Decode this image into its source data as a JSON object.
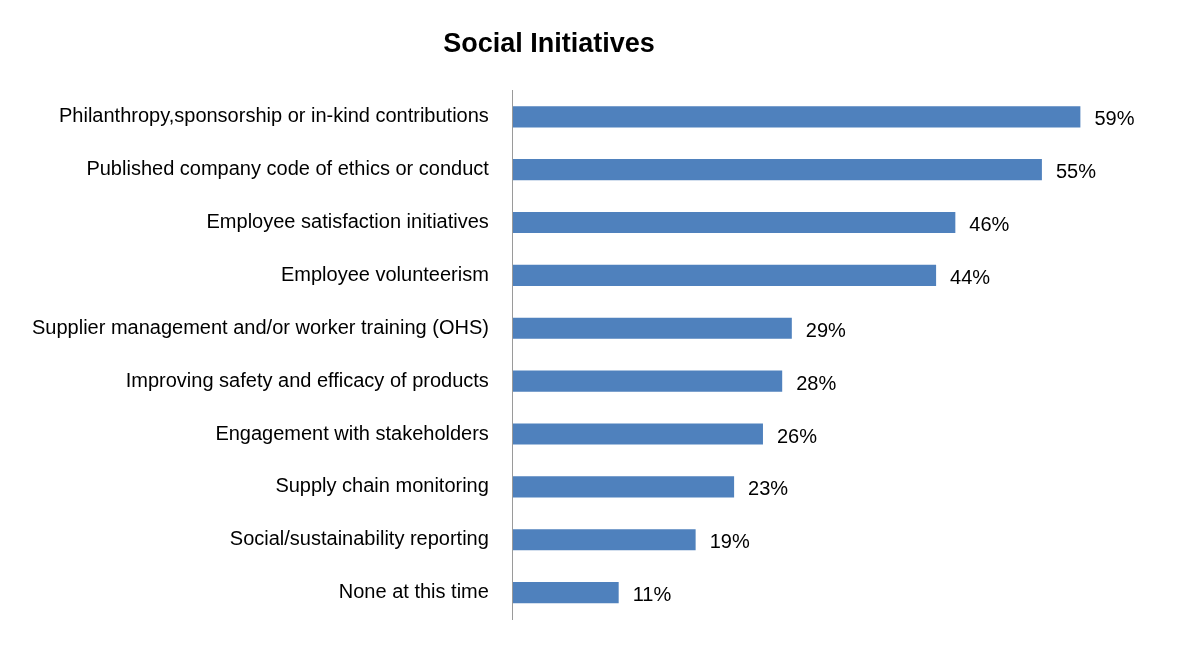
{
  "chart_data": {
    "type": "bar",
    "orientation": "horizontal",
    "title": "Social Initiatives",
    "categories": [
      "Philanthropy,sponsorship or in-kind contributions",
      "Published company code of ethics or conduct",
      "Employee satisfaction initiatives",
      "Employee volunteerism",
      "Supplier management and/or worker training (OHS)",
      "Improving safety and efficacy of products",
      "Engagement with stakeholders",
      "Supply chain monitoring",
      "Social/sustainability reporting",
      "None at this time"
    ],
    "values": [
      59,
      55,
      46,
      44,
      29,
      28,
      26,
      23,
      19,
      11
    ],
    "value_labels": [
      "59%",
      "55%",
      "46%",
      "44%",
      "29%",
      "28%",
      "26%",
      "23%",
      "19%",
      "11%"
    ],
    "color": "#4f81bd"
  }
}
